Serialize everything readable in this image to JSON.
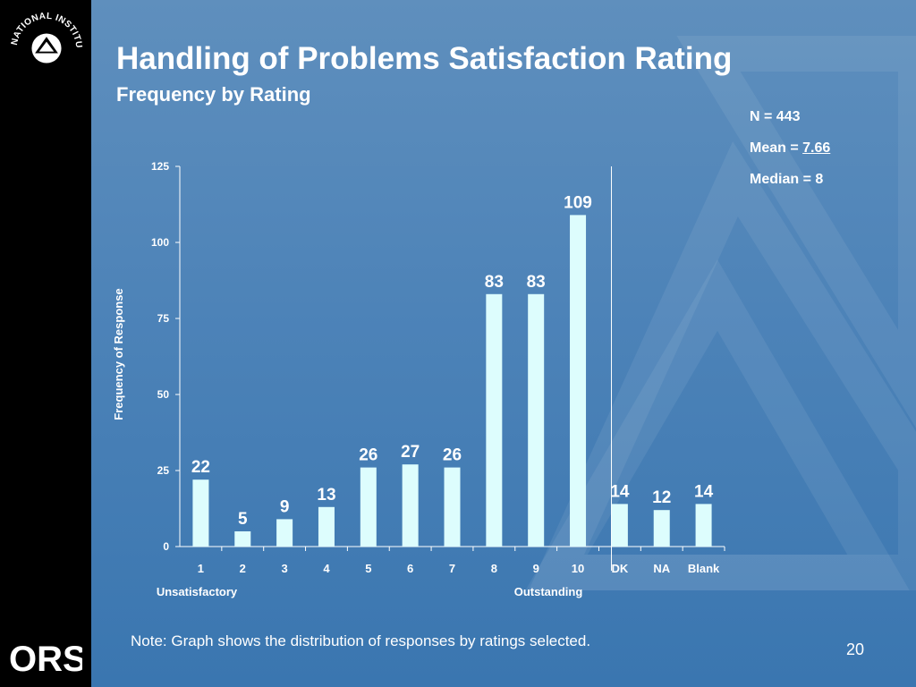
{
  "slide": {
    "title": "Handling of Problems Satisfaction Rating",
    "subtitle": "Frequency by Rating",
    "note": "Note:  Graph shows the distribution of responses by ratings selected.",
    "page_number": "20"
  },
  "logos": {
    "nih_text": "NATIONAL INSTITUTES OF HEALTH",
    "ors_text": "ORS"
  },
  "stats": {
    "n_label": "N = ",
    "n_value": "443",
    "mean_label": "Mean = ",
    "mean_value": "7.66",
    "median_label": "Median = ",
    "median_value": "8"
  },
  "colors": {
    "bar_fill": "#ddfdfd",
    "axis": "#ffffff",
    "background": "#4d83b8",
    "sidebar": "#000000"
  },
  "chart_data": {
    "type": "bar",
    "categories": [
      "1",
      "2",
      "3",
      "4",
      "5",
      "6",
      "7",
      "8",
      "9",
      "10",
      "DK",
      "NA",
      "Blank"
    ],
    "values": [
      22,
      5,
      9,
      13,
      26,
      27,
      26,
      83,
      83,
      109,
      14,
      12,
      14
    ],
    "ylabel": "Frequency of Response",
    "ylim": [
      0,
      125
    ],
    "yticks": [
      0,
      25,
      50,
      75,
      100,
      125
    ],
    "x_annotations": {
      "low": "Unsatisfactory",
      "high": "Outstanding"
    },
    "grid": false,
    "legend": "none"
  }
}
